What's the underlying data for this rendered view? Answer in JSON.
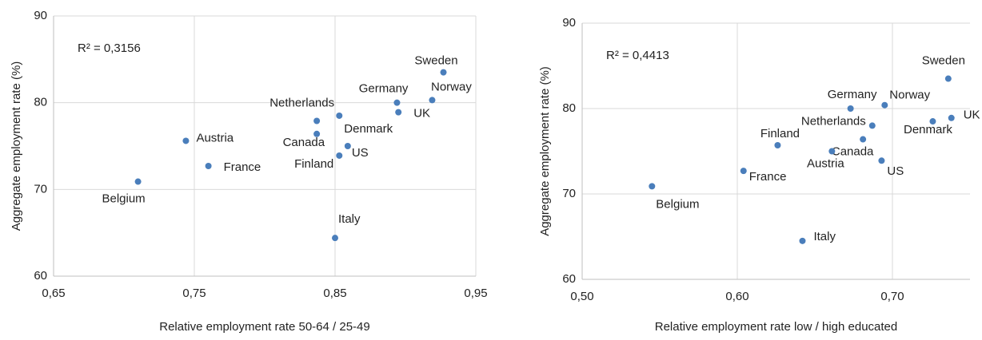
{
  "chart_data": [
    {
      "type": "scatter",
      "annotation": "R² = 0,3156",
      "x_label": "Relative employment rate 50-64 / 25-49",
      "y_label": "Aggregate employment rate (%)",
      "color": "#4a7ebb",
      "grid": true,
      "xlim": [
        0.65,
        0.95
      ],
      "xticks": [
        {
          "value": 0.65,
          "label": "0,65"
        },
        {
          "value": 0.75,
          "label": "0,75"
        },
        {
          "value": 0.85,
          "label": "0,85"
        },
        {
          "value": 0.95,
          "label": "0,95"
        }
      ],
      "ylim": [
        60,
        90
      ],
      "yticks": [
        60,
        70,
        80,
        90
      ],
      "labels": [
        "Sweden",
        "Norway",
        "UK",
        "Germany",
        "Denmark",
        "US",
        "Finland",
        "Netherlands",
        "Canada",
        "Italy",
        "Austria",
        "France",
        "Belgium"
      ],
      "x": [
        0.927,
        0.919,
        0.895,
        0.894,
        0.853,
        0.859,
        0.853,
        0.837,
        0.837,
        0.85,
        0.744,
        0.76,
        0.71
      ],
      "y": [
        83.5,
        80.3,
        78.9,
        80.0,
        78.5,
        75.0,
        73.9,
        77.9,
        76.4,
        64.4,
        75.6,
        72.7,
        70.9
      ]
    },
    {
      "type": "scatter",
      "annotation": "R² = 0,4413",
      "x_label": "Relative employment rate low / high educated",
      "y_label": "Aggregate employment rate (%)",
      "color": "#4a7ebb",
      "grid": true,
      "xlim": [
        0.5,
        0.75
      ],
      "xticks": [
        {
          "value": 0.5,
          "label": "0,50"
        },
        {
          "value": 0.6,
          "label": "0,60"
        },
        {
          "value": 0.7,
          "label": "0,70"
        }
      ],
      "ylim": [
        60,
        90
      ],
      "yticks": [
        60,
        70,
        80,
        90
      ],
      "labels": [
        "Sweden",
        "UK",
        "Denmark",
        "Norway",
        "Germany",
        "Netherlands",
        "Canada",
        "US",
        "Austria",
        "Finland",
        "France",
        "Italy",
        "Belgium"
      ],
      "x": [
        0.736,
        0.738,
        0.726,
        0.695,
        0.673,
        0.687,
        0.681,
        0.693,
        0.661,
        0.626,
        0.604,
        0.642,
        0.545
      ],
      "y": [
        83.5,
        78.9,
        78.5,
        80.4,
        80.0,
        78.0,
        76.4,
        73.9,
        75.0,
        75.7,
        72.7,
        64.5,
        70.9
      ]
    }
  ]
}
